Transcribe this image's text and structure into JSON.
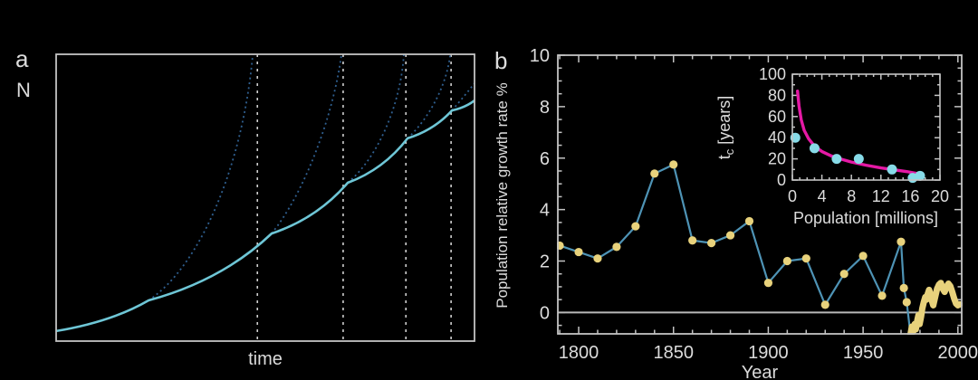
{
  "figure": {
    "background": "#000000",
    "text_color": "#dcdcdc",
    "spine_color": "#c4c4c4"
  },
  "chart_data": [
    {
      "id": "schematic-population-growth",
      "type": "line",
      "panel_label": "a",
      "xlabel": "time",
      "ylabel": "N",
      "description": "Schematic: population N (solid cyan) grows in successive near-exponential segments; dotted blue curves show the exponential continuation of each segment; white dashed vertical lines mark where each extrapolation diverges.",
      "grid": false,
      "solid_curve_norm": [
        [
          0,
          0.035
        ],
        [
          0.221,
          0.142
        ],
        [
          0.515,
          0.375
        ],
        [
          0.697,
          0.552
        ],
        [
          0.84,
          0.707
        ],
        [
          0.946,
          0.804
        ],
        [
          1,
          0.839
        ]
      ],
      "dashed_curves_norm": [
        [
          [
            0.221,
            0.142
          ],
          [
            0.342,
            0.259
          ],
          [
            0.446,
            0.606
          ],
          [
            0.47,
            1.0
          ]
        ],
        [
          [
            0.515,
            0.375
          ],
          [
            0.591,
            0.511
          ],
          [
            0.662,
            0.779
          ],
          [
            0.682,
            1.0
          ]
        ],
        [
          [
            0.697,
            0.552
          ],
          [
            0.775,
            0.647
          ],
          [
            0.825,
            0.842
          ],
          [
            0.831,
            1.0
          ]
        ],
        [
          [
            0.84,
            0.707
          ],
          [
            0.898,
            0.786
          ],
          [
            0.935,
            0.905
          ],
          [
            0.942,
            1.0
          ]
        ],
        [
          [
            0.946,
            0.804
          ],
          [
            0.978,
            0.858
          ],
          [
            1.0,
            0.899
          ]
        ]
      ],
      "vlines_norm_x": [
        0.481,
        0.686,
        0.836,
        0.944
      ],
      "colors": {
        "solid": "#6ec6d6",
        "dashed": "#2f5f8f",
        "vline": "#cfcfcf"
      }
    },
    {
      "id": "population-relative-growth-rate",
      "type": "line+scatter",
      "panel_label": "b",
      "xlabel": "Year",
      "ylabel": "Population relative growth rate %",
      "xlim": [
        1789,
        2002
      ],
      "ylim": [
        -0.83,
        10
      ],
      "xticks": [
        1800,
        1850,
        1900,
        1950,
        2000
      ],
      "xminor_step": 10,
      "yticks": [
        0,
        2,
        4,
        6,
        8,
        10
      ],
      "yminor_step": 0.5,
      "zero_line": true,
      "grid": false,
      "decades": {
        "years": [
          1790,
          1800,
          1810,
          1820,
          1830,
          1840,
          1850,
          1860,
          1870,
          1880,
          1890,
          1900,
          1910,
          1920,
          1930,
          1940,
          1950,
          1960,
          1970
        ],
        "values": [
          2.6,
          2.35,
          2.1,
          2.55,
          3.35,
          5.4,
          5.75,
          2.8,
          2.7,
          3.0,
          3.55,
          1.15,
          2.0,
          2.1,
          0.3,
          1.5,
          2.2,
          0.65,
          2.75
        ]
      },
      "transition_points": [
        [
          1971.5,
          0.95
        ],
        [
          1973,
          0.4
        ]
      ],
      "annual": [
        [
          1975,
          -0.85
        ],
        [
          1975.7,
          -0.55
        ],
        [
          1976.4,
          -0.75
        ],
        [
          1977.2,
          -0.45
        ],
        [
          1977.8,
          -0.65
        ],
        [
          1978.6,
          -0.3
        ],
        [
          1979.2,
          -0.1
        ],
        [
          1979.8,
          -0.45
        ],
        [
          1980.6,
          -0.15
        ],
        [
          1981.2,
          0.15
        ],
        [
          1982,
          0.4
        ],
        [
          1982.8,
          0.6
        ],
        [
          1983.4,
          0.5
        ],
        [
          1984,
          0.7
        ],
        [
          1984.8,
          0.88
        ],
        [
          1985.5,
          0.72
        ],
        [
          1986.3,
          0.45
        ],
        [
          1987,
          0.28
        ],
        [
          1988,
          0.6
        ],
        [
          1989,
          0.92
        ],
        [
          1990,
          1.08
        ],
        [
          1991,
          1.15
        ],
        [
          1992,
          0.92
        ],
        [
          1993,
          0.8
        ],
        [
          1994,
          1.0
        ],
        [
          1995,
          1.12
        ],
        [
          1996,
          1.02
        ],
        [
          1997,
          0.8
        ],
        [
          1998,
          0.55
        ],
        [
          1999,
          0.35
        ],
        [
          2000,
          0.28
        ],
        [
          2001,
          0.32
        ]
      ],
      "colors": {
        "line": "#4e93b5",
        "marker": "#e8d27c",
        "annual": "#e8d27c",
        "zero_line": "#b8b8b8"
      }
    },
    {
      "id": "doubling-time-vs-population-inset",
      "type": "scatter",
      "xlabel": "Population [millions]",
      "ylabel_parts": {
        "pre": "t",
        "sub": "c",
        "post": " [years]"
      },
      "xlim": [
        0,
        20
      ],
      "ylim": [
        0,
        100
      ],
      "xticks": [
        0,
        4,
        8,
        12,
        16,
        20
      ],
      "xminor_step": 1,
      "yticks": [
        0,
        20,
        40,
        60,
        80,
        100
      ],
      "yminor_step": 10,
      "grid": false,
      "points": [
        [
          0.4,
          40
        ],
        [
          3,
          30
        ],
        [
          6,
          20
        ],
        [
          9,
          20
        ],
        [
          13.5,
          10
        ],
        [
          16.3,
          2
        ],
        [
          17.3,
          4
        ]
      ],
      "fit_curve": [
        [
          0.7,
          84
        ],
        [
          0.9,
          70
        ],
        [
          1.2,
          57
        ],
        [
          1.6,
          47
        ],
        [
          2.2,
          39
        ],
        [
          3,
          32
        ],
        [
          4,
          27
        ],
        [
          5.2,
          23
        ],
        [
          6.5,
          20
        ],
        [
          8,
          17
        ],
        [
          10,
          14
        ],
        [
          12,
          11.5
        ],
        [
          14,
          9.5
        ],
        [
          15.5,
          8
        ],
        [
          17,
          6
        ],
        [
          17.6,
          5.2
        ]
      ],
      "colors": {
        "marker": "#87dbe8",
        "curve": "#e519a5"
      }
    }
  ]
}
